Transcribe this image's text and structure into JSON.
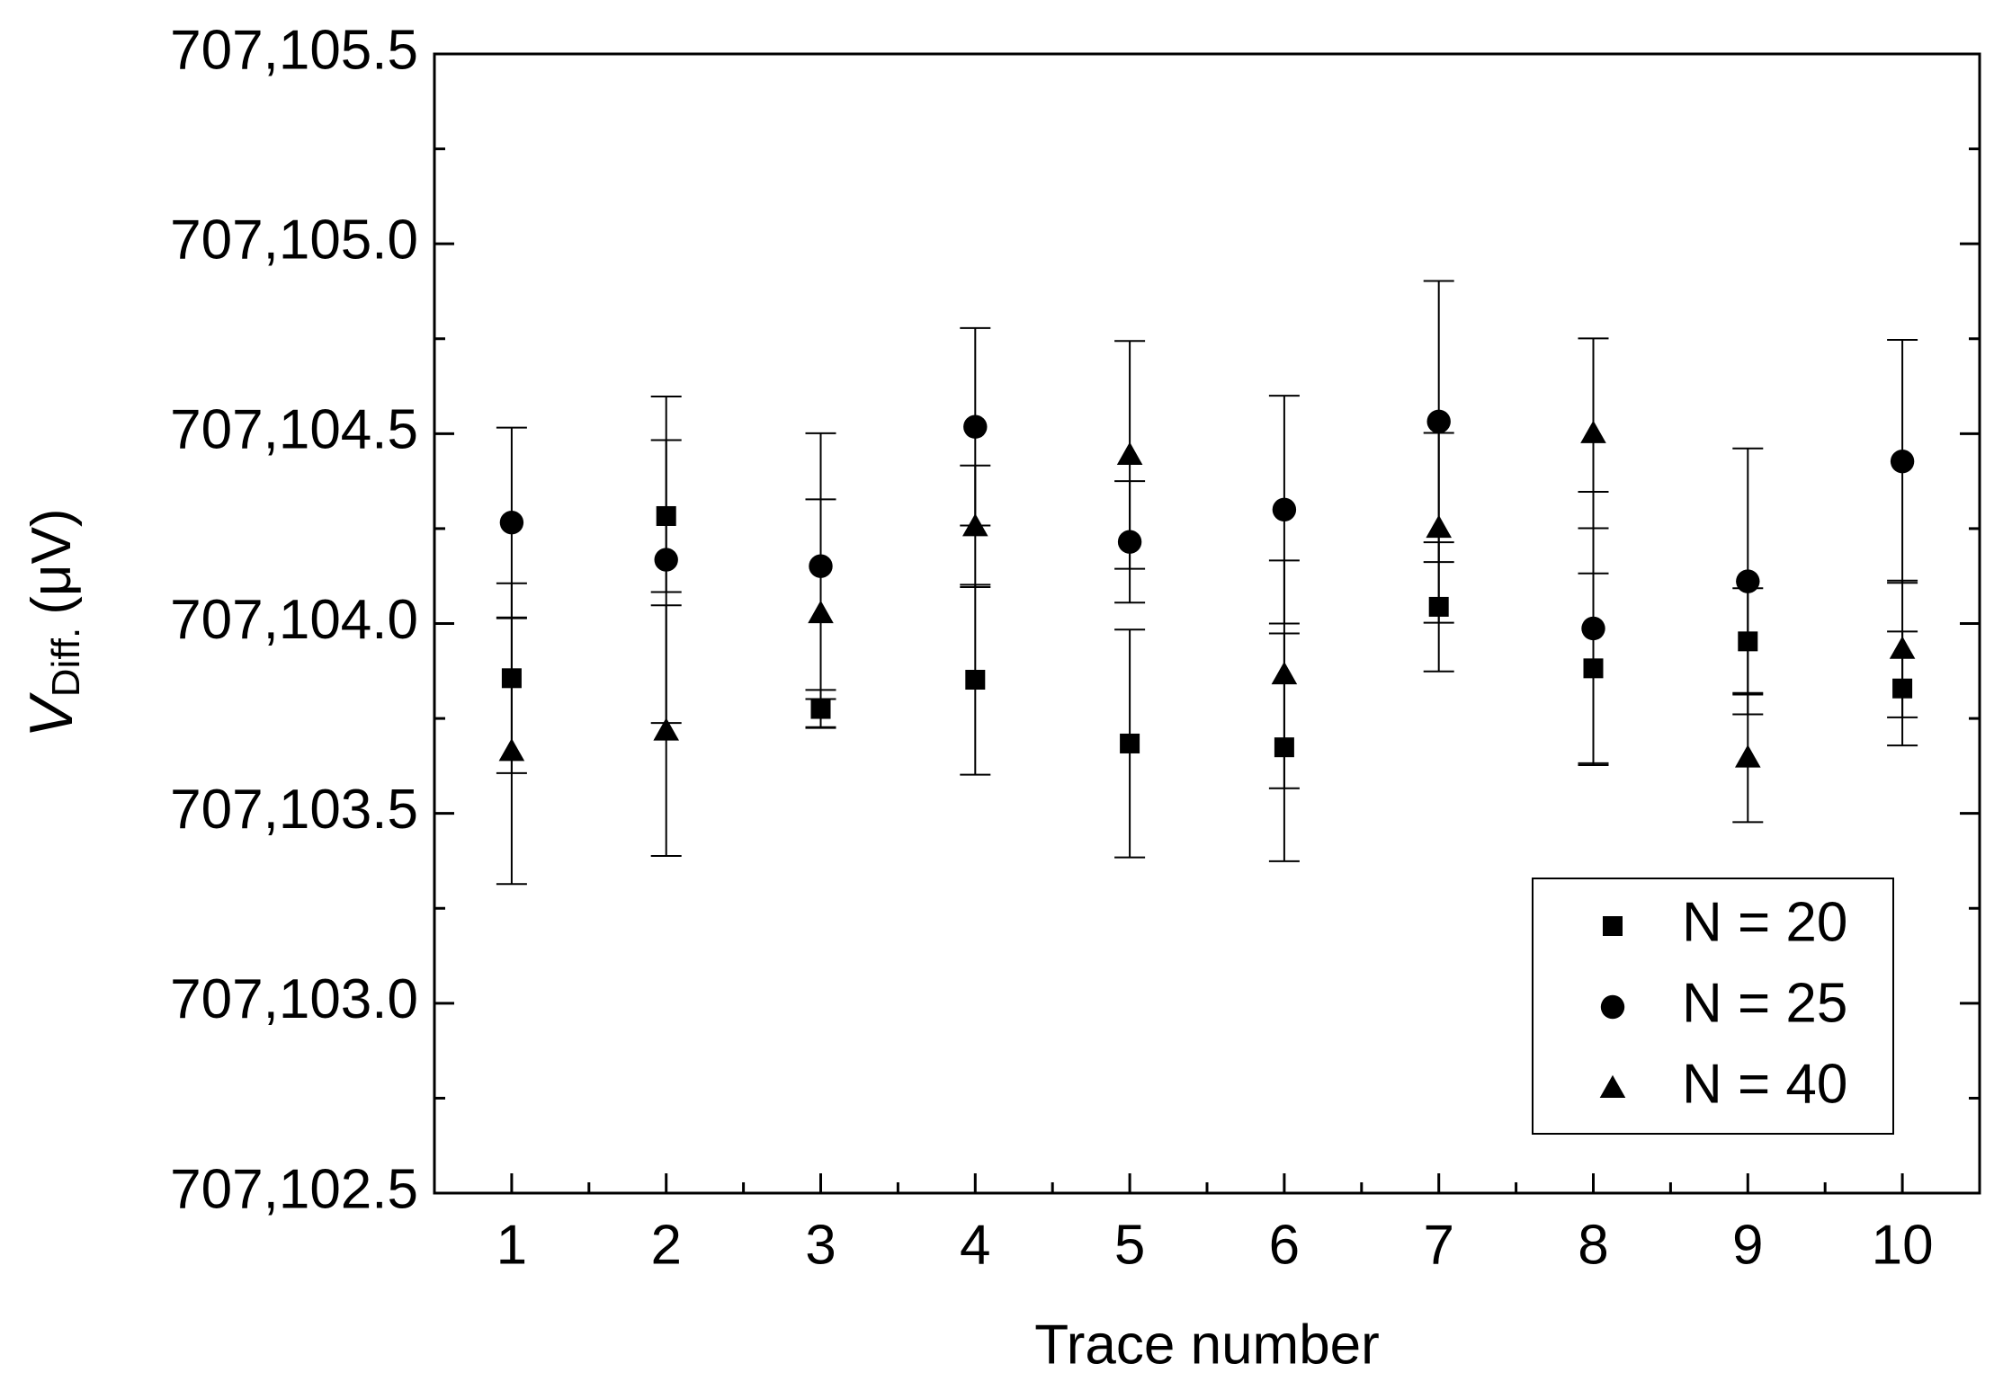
{
  "chart_data": {
    "type": "scatter",
    "x_label": "Trace number",
    "y_label": {
      "symbol": "V",
      "subscript": "Diff.",
      "unit": "(μV)"
    },
    "x": [
      1,
      2,
      3,
      4,
      5,
      6,
      7,
      8,
      9,
      10
    ],
    "series": [
      {
        "name": "N = 20",
        "marker": "square",
        "color": "#000000",
        "values": [
          707103.856,
          707104.283,
          707103.775,
          707103.852,
          707103.684,
          707103.674,
          707104.044,
          707103.882,
          707103.953,
          707103.829
        ],
        "errors": [
          0.25,
          0.2,
          0.05,
          0.25,
          0.3,
          0.3,
          0.17,
          0.25,
          0.14,
          0.15
        ]
      },
      {
        "name": "N = 25",
        "marker": "circle",
        "color": "#000000",
        "values": [
          707104.266,
          707104.168,
          707104.151,
          707104.518,
          707104.215,
          707104.3,
          707104.532,
          707103.987,
          707104.111,
          707104.427
        ],
        "errors": [
          0.25,
          0.43,
          0.35,
          0.26,
          0.16,
          0.3,
          0.37,
          0.36,
          0.35,
          0.32
        ]
      },
      {
        "name": "N = 40",
        "marker": "triangle",
        "color": "#000000",
        "values": [
          707103.664,
          707103.718,
          707104.027,
          707104.256,
          707104.444,
          707103.866,
          707104.252,
          707104.501,
          707103.647,
          707103.933
        ],
        "errors": [
          0.35,
          0.33,
          0.3,
          0.16,
          0.3,
          0.3,
          0.25,
          0.25,
          0.17,
          0.18
        ]
      }
    ],
    "xlim": [
      0.5,
      10.5
    ],
    "xticks": [
      1,
      2,
      3,
      4,
      5,
      6,
      7,
      8,
      9,
      10
    ],
    "ylim": [
      707102.5,
      707105.5
    ],
    "yticks": [
      {
        "value": 707102.5,
        "label": "707,102.5"
      },
      {
        "value": 707103,
        "label": "707,103.0"
      },
      {
        "value": 707103.5,
        "label": "707,103.5"
      },
      {
        "value": 707104,
        "label": "707,104.0"
      },
      {
        "value": 707104.5,
        "label": "707,104.5"
      },
      {
        "value": 707105,
        "label": "707,105.0"
      },
      {
        "value": 707105.5,
        "label": "707,105.5"
      }
    ],
    "grid": false,
    "legend": "lower right"
  }
}
